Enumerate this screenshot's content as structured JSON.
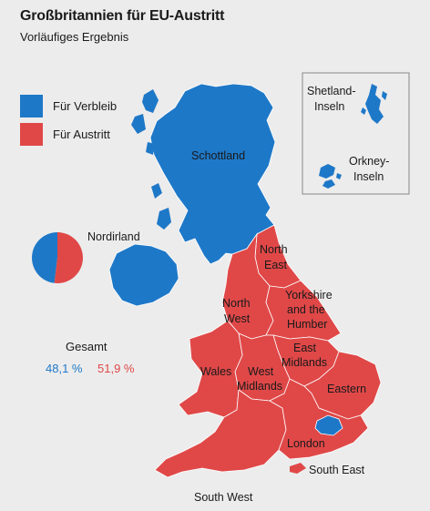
{
  "header": {
    "title": "Großbritannien für EU-Austritt",
    "subtitle": "Vorläufiges Ergebnis"
  },
  "colors": {
    "remain": "#1e78c8",
    "leave": "#e04848"
  },
  "legend": {
    "items": [
      {
        "label": "Für Verbleib",
        "color": "#1e78c8"
      },
      {
        "label": "Für Austritt",
        "color": "#e04848"
      }
    ]
  },
  "regions": {
    "schottland": "Schottland",
    "nordirland": "Nordirland",
    "north_east": [
      "North",
      "East"
    ],
    "north_west": [
      "North",
      "West"
    ],
    "yorkshire": [
      "Yorkshire",
      "and the",
      "Humber"
    ],
    "east_midlands": [
      "East",
      "Midlands"
    ],
    "west_midlands": [
      "West",
      "Midlands"
    ],
    "wales": "Wales",
    "eastern": "Eastern",
    "london": "London",
    "south_east": "South East",
    "south_west": "South West"
  },
  "inset": {
    "shetland": [
      "Shetland-",
      "Inseln"
    ],
    "orkney": [
      "Orkney-",
      "Inseln"
    ]
  },
  "total": {
    "label": "Gesamt",
    "remain_text": "48,1 %",
    "leave_text": "51,9 %",
    "remain_value": 48.1,
    "leave_value": 51.9
  }
}
